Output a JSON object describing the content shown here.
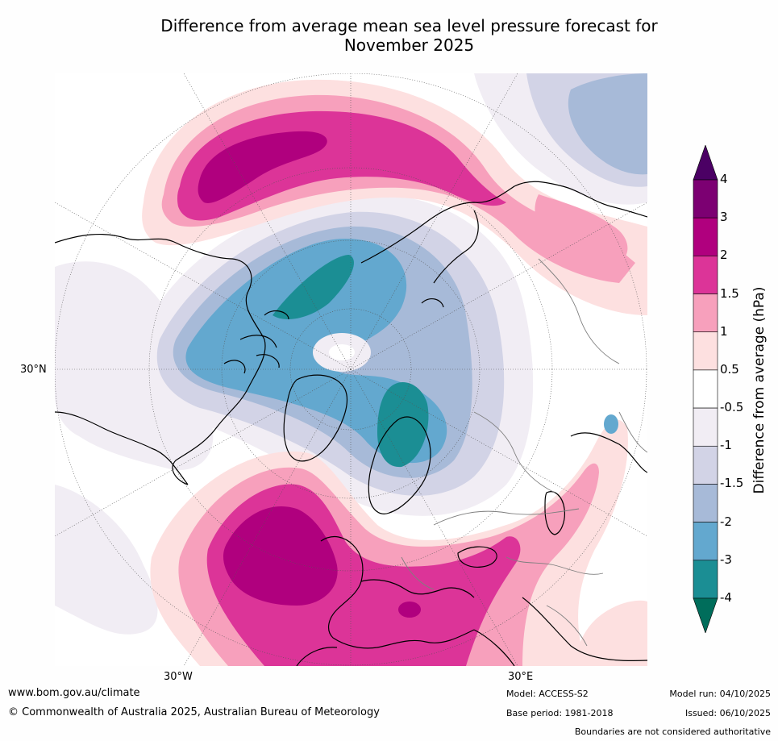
{
  "title_line1": "Difference from average mean sea level pressure forecast for",
  "title_line2": "November 2025",
  "map": {
    "lat_label": "30°N",
    "lon_labels": {
      "west": "30°W",
      "east": "30°E"
    }
  },
  "colorbar": {
    "title": "Difference from average (hPa)",
    "tick_labels": [
      "4",
      "3",
      "2",
      "1.5",
      "1",
      "0.5",
      "-0.5",
      "-1",
      "-1.5",
      "-2",
      "-3",
      "-4"
    ],
    "bins": [
      {
        "range": "> 4",
        "color": "#4b0064"
      },
      {
        "range": "3 to 4",
        "color": "#7c0072"
      },
      {
        "range": "2 to 3",
        "color": "#b0007e"
      },
      {
        "range": "1.5 to 2",
        "color": "#dc3498"
      },
      {
        "range": "1 to 1.5",
        "color": "#f7a0bc"
      },
      {
        "range": "0.5 to 1",
        "color": "#fde0e0"
      },
      {
        "range": "-0.5 to 0.5",
        "color": "#ffffff"
      },
      {
        "range": "-1 to -0.5",
        "color": "#f1edf4"
      },
      {
        "range": "-1.5 to -1",
        "color": "#d2d3e6"
      },
      {
        "range": "-2 to -1.5",
        "color": "#a7bad8"
      },
      {
        "range": "-3 to -2",
        "color": "#63a8cf"
      },
      {
        "range": "-4 to -3",
        "color": "#1b8e94"
      },
      {
        "range": "< -4",
        "color": "#006d5b"
      }
    ]
  },
  "footer": {
    "url": "www.bom.gov.au/climate",
    "copyright": "© Commonwealth of Australia 2025, Australian Bureau of Meteorology",
    "model": "Model: ACCESS-S2",
    "base_period": "Base period: 1981-2018",
    "model_run": "Model run: 04/10/2025",
    "issued": "Issued: 06/10/2025",
    "disclaimer": "Boundaries are not considered authoritative"
  }
}
